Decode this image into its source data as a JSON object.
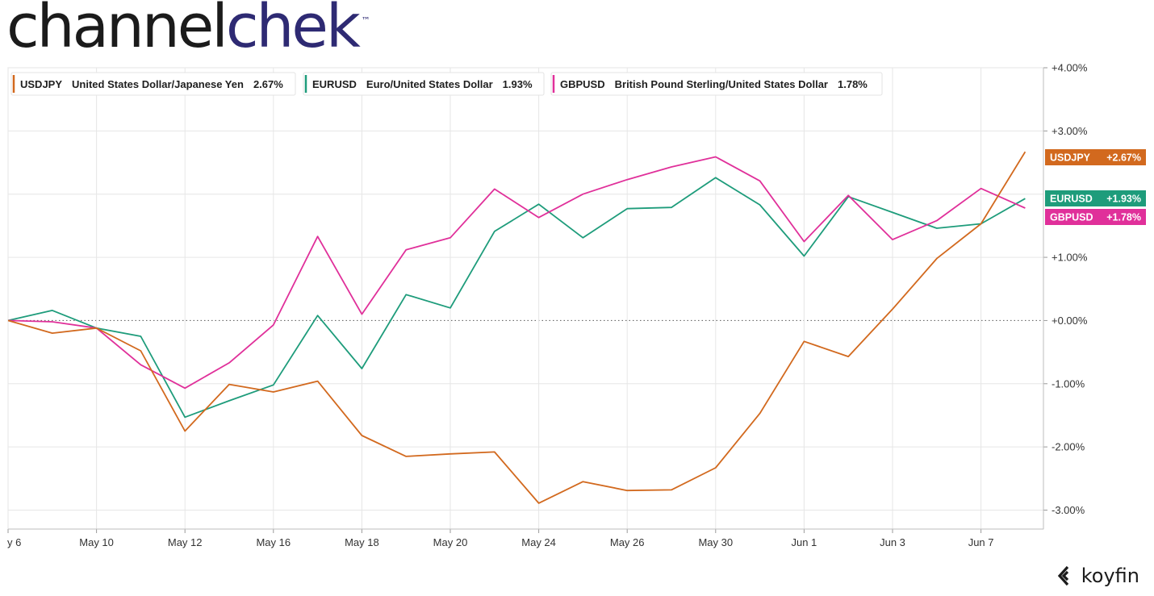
{
  "brand": {
    "part1": "channel",
    "part2": "chek",
    "tm": "™"
  },
  "footer": {
    "logo_text": "koyfin"
  },
  "colors": {
    "USDJPY": "#d2691e",
    "EURUSD": "#1e9c7b",
    "GBPUSD": "#e0309a",
    "grid": "#e6e6e6",
    "axis": "#9a9a9a",
    "zero": "#555555"
  },
  "legend": [
    {
      "symbol": "USDJPY",
      "name": "United States Dollar/Japanese Yen",
      "value": "2.67%"
    },
    {
      "symbol": "EURUSD",
      "name": "Euro/United States Dollar",
      "value": "1.93%"
    },
    {
      "symbol": "GBPUSD",
      "name": "British Pound Sterling/United States Dollar",
      "value": "1.78%"
    }
  ],
  "chart_data": {
    "type": "line",
    "x_ticks": [
      "y 6",
      "May 10",
      "May 12",
      "May 16",
      "May 18",
      "May 20",
      "May 24",
      "May 26",
      "May 30",
      "Jun 1",
      "Jun 3",
      "Jun 7"
    ],
    "x": [
      "May 6",
      "May 9",
      "May 10",
      "May 11",
      "May 12",
      "May 13",
      "May 16",
      "May 17",
      "May 18",
      "May 19",
      "May 20",
      "May 23",
      "May 24",
      "May 25",
      "May 26",
      "May 27",
      "May 30",
      "May 31",
      "Jun 1",
      "Jun 2",
      "Jun 3",
      "Jun 6",
      "Jun 7",
      "Jun 8"
    ],
    "series": [
      {
        "name": "USDJPY",
        "values": [
          0.0,
          -0.2,
          -0.12,
          -0.48,
          -1.75,
          -1.01,
          -1.13,
          -0.96,
          -1.82,
          -2.15,
          -2.11,
          -2.08,
          -2.89,
          -2.55,
          -2.69,
          -2.68,
          -2.33,
          -1.47,
          -0.33,
          -0.57,
          0.18,
          0.98,
          1.53,
          2.67
        ]
      },
      {
        "name": "EURUSD",
        "values": [
          0.0,
          0.16,
          -0.12,
          -0.25,
          -1.53,
          -1.27,
          -1.02,
          0.08,
          -0.76,
          0.41,
          0.2,
          1.41,
          1.84,
          1.31,
          1.77,
          1.79,
          2.26,
          1.83,
          1.02,
          1.96,
          1.71,
          1.46,
          1.53,
          1.93
        ]
      },
      {
        "name": "GBPUSD",
        "values": [
          0.0,
          -0.02,
          -0.12,
          -0.7,
          -1.07,
          -0.67,
          -0.07,
          1.33,
          0.1,
          1.12,
          1.31,
          2.08,
          1.63,
          2.0,
          2.23,
          2.43,
          2.59,
          2.21,
          1.25,
          1.98,
          1.28,
          1.58,
          2.09,
          1.78
        ]
      }
    ],
    "y_ticks": [
      "+4.00%",
      "+3.00%",
      "+1.00%",
      "+0.00%",
      "-1.00%",
      "-2.00%",
      "-3.00%"
    ],
    "y_tick_values": [
      4,
      3,
      1,
      0,
      -1,
      -2,
      -3
    ],
    "ylim": [
      -3.3,
      4.0
    ],
    "end_labels": [
      {
        "symbol": "USDJPY",
        "value": "+2.67%"
      },
      {
        "symbol": "EURUSD",
        "value": "+1.93%"
      },
      {
        "symbol": "GBPUSD",
        "value": "+1.78%"
      }
    ],
    "grid": true,
    "legend_position": "top-left"
  }
}
